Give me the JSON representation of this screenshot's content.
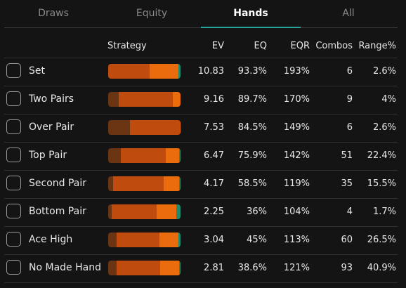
{
  "tabs": [
    {
      "label": "Draws",
      "active": false
    },
    {
      "label": "Equity",
      "active": false
    },
    {
      "label": "Hands",
      "active": true
    },
    {
      "label": "All",
      "active": false
    }
  ],
  "columns": {
    "strategy": "Strategy",
    "ev": "EV",
    "eq": "EQ",
    "eqr": "EQR",
    "combos": "Combos",
    "range": "Range%"
  },
  "colors": {
    "seg_dark": "#6b3412",
    "seg_mid": "#c04b0e",
    "seg_light": "#ea6c0c",
    "seg_green": "#1f8a6e",
    "accent": "#26a69a"
  },
  "rows": [
    {
      "name": "Set",
      "ev": "10.83",
      "eq": "93.3%",
      "eqr": "193%",
      "combos": "6",
      "range": "2.6%",
      "strategy": [
        0,
        57,
        40,
        3
      ]
    },
    {
      "name": "Two Pairs",
      "ev": "9.16",
      "eq": "89.7%",
      "eqr": "170%",
      "combos": "9",
      "range": "4%",
      "strategy": [
        15,
        74,
        11,
        0
      ]
    },
    {
      "name": "Over Pair",
      "ev": "7.53",
      "eq": "84.5%",
      "eqr": "149%",
      "combos": "6",
      "range": "2.6%",
      "strategy": [
        30,
        69,
        1,
        0
      ]
    },
    {
      "name": "Top Pair",
      "ev": "6.47",
      "eq": "75.9%",
      "eqr": "142%",
      "combos": "51",
      "range": "22.4%",
      "strategy": [
        17,
        63,
        18,
        2
      ]
    },
    {
      "name": "Second Pair",
      "ev": "4.17",
      "eq": "58.5%",
      "eqr": "119%",
      "combos": "35",
      "range": "15.5%",
      "strategy": [
        7,
        70,
        21,
        2
      ]
    },
    {
      "name": "Bottom Pair",
      "ev": "2.25",
      "eq": "36%",
      "eqr": "104%",
      "combos": "4",
      "range": "1.7%",
      "strategy": [
        5,
        62,
        27,
        6
      ]
    },
    {
      "name": "Ace High",
      "ev": "3.04",
      "eq": "45%",
      "eqr": "113%",
      "combos": "60",
      "range": "26.5%",
      "strategy": [
        12,
        59,
        26,
        3
      ]
    },
    {
      "name": "No Made Hand",
      "ev": "2.81",
      "eq": "38.6%",
      "eqr": "121%",
      "combos": "93",
      "range": "40.9%",
      "strategy": [
        12,
        60,
        26,
        2
      ]
    }
  ]
}
